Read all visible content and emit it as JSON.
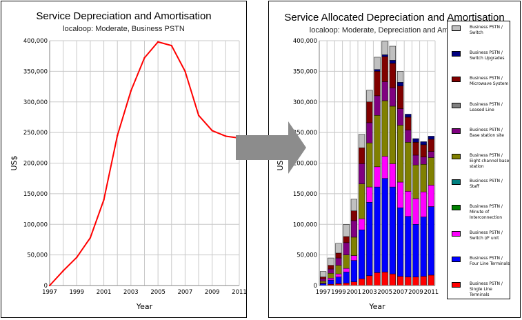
{
  "chart_data": [
    {
      "type": "line",
      "title": "Service Depreciation and Amortisation",
      "subtitle": "localoop: Moderate, Business PSTN",
      "xlabel": "Year",
      "ylabel": "US$",
      "x": [
        1997,
        1998,
        1999,
        2000,
        2001,
        2002,
        2003,
        2004,
        2005,
        2006,
        2007,
        2008,
        2009,
        2010,
        2011
      ],
      "series": [
        {
          "values": [
            0,
            24000,
            46000,
            78000,
            140000,
            245000,
            318000,
            372000,
            398000,
            392000,
            350000,
            278000,
            253000,
            244000,
            241000
          ]
        }
      ],
      "ylim": [
        0,
        400000
      ],
      "xlim": [
        1997,
        2011
      ],
      "x_ticks": [
        "1997",
        "1999",
        "2001",
        "2003",
        "2005",
        "2007",
        "2009",
        "2011"
      ],
      "y_ticks": [
        "0",
        "50,000",
        "100,000",
        "150,000",
        "200,000",
        "250,000",
        "300,000",
        "350,000",
        "400,000"
      ],
      "line_color": "#ff0000",
      "grid": true
    },
    {
      "type": "bar",
      "stacked": true,
      "title": "Service Allocated Depreciation and Amortisation",
      "subtitle": "localoop: Moderate, Depreciation and Amortisation",
      "xlabel": "Year",
      "ylabel": "US$",
      "categories": [
        "1997",
        "1998",
        "1999",
        "2000",
        "2001",
        "2002",
        "2003",
        "2004",
        "2005",
        "2006",
        "2007",
        "2008",
        "2009",
        "2010",
        "2011"
      ],
      "x_ticks": [
        "1997",
        "1999",
        "2001",
        "2003",
        "2005",
        "2007",
        "2009",
        "2011"
      ],
      "y_ticks": [
        "0",
        "50,000",
        "100,000",
        "150,000",
        "200,000",
        "250,000",
        "300,000",
        "350,000",
        "400,000"
      ],
      "ylim": [
        0,
        400000
      ],
      "grid": true,
      "series": [
        {
          "name": "Business PSTN / Single Line Terminals",
          "color": "#ff0000",
          "values": [
            0,
            2000,
            3000,
            4000,
            6000,
            11000,
            16000,
            21000,
            22000,
            19000,
            15000,
            14000,
            14000,
            15000,
            17000
          ]
        },
        {
          "name": "Business PSTN / Four Line Terminals",
          "color": "#0000ff",
          "values": [
            3000,
            7000,
            11000,
            18000,
            35000,
            80000,
            120000,
            140000,
            153000,
            142000,
            112000,
            99000,
            86000,
            97000,
            112000
          ]
        },
        {
          "name": "Business PSTN / Switch I/F unit",
          "color": "#ff00ff",
          "values": [
            1000,
            3000,
            5000,
            6000,
            8000,
            18000,
            25000,
            33000,
            36000,
            38000,
            42000,
            41000,
            42000,
            41000,
            35000
          ]
        },
        {
          "name": "Business PSTN / Minute of Interconnection",
          "color": "#008000",
          "values": [
            0,
            0,
            0,
            0,
            0,
            0,
            0,
            0,
            0,
            0,
            0,
            0,
            0,
            0,
            0
          ]
        },
        {
          "name": "Business PSTN / Staff",
          "color": "#008080",
          "values": [
            0,
            0,
            0,
            0,
            0,
            0,
            0,
            0,
            0,
            0,
            0,
            0,
            0,
            0,
            0
          ]
        },
        {
          "name": "Business PSTN / Eight channel base station",
          "color": "#808000",
          "values": [
            3000,
            8000,
            14000,
            22000,
            30000,
            57000,
            72000,
            84000,
            91000,
            94000,
            93000,
            80000,
            55000,
            45000,
            45000
          ]
        },
        {
          "name": "Business PSTN / Base station site",
          "color": "#800080",
          "values": [
            4000,
            7000,
            12000,
            20000,
            27000,
            33000,
            33000,
            32000,
            31000,
            30000,
            27000,
            20000,
            16000,
            12000,
            10000
          ]
        },
        {
          "name": "Business PSTN / Leased Line",
          "color": "#808080",
          "values": [
            0,
            0,
            0,
            0,
            0,
            0,
            0,
            0,
            0,
            0,
            0,
            0,
            0,
            0,
            0
          ]
        },
        {
          "name": "Business PSTN / Microwave System",
          "color": "#800000",
          "values": [
            3000,
            6000,
            8000,
            10000,
            16000,
            26000,
            34000,
            40000,
            41000,
            40000,
            37000,
            21000,
            21000,
            20000,
            20000
          ]
        },
        {
          "name": "Business PSTN / Switch Upgrades",
          "color": "#000080",
          "values": [
            0,
            0,
            0,
            0,
            0,
            0,
            0,
            3000,
            3000,
            5000,
            6000,
            5000,
            6000,
            5000,
            5000
          ]
        },
        {
          "name": "Business PSTN / Switch",
          "color": "#c0c0c0",
          "values": [
            9000,
            12000,
            16000,
            20000,
            19000,
            22000,
            19000,
            20000,
            22000,
            23000,
            18000,
            0,
            0,
            0,
            0
          ]
        }
      ],
      "legend_position": "right"
    }
  ]
}
